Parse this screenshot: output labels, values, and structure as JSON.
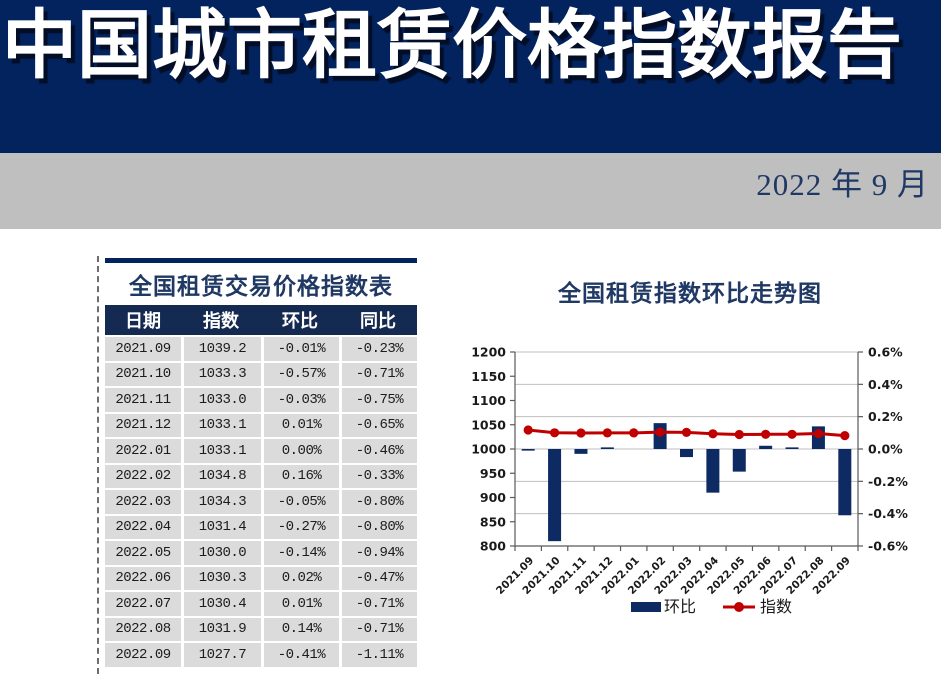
{
  "banner": {
    "title": "中国城市租赁价格指数报告"
  },
  "subheader": {
    "date": "2022 年 9 月"
  },
  "table": {
    "title": "全国租赁交易价格指数表",
    "columns": [
      "日期",
      "指数",
      "环比",
      "同比"
    ],
    "rows": [
      [
        "2021.09",
        "1039.2",
        "-0.01%",
        "-0.23%"
      ],
      [
        "2021.10",
        "1033.3",
        "-0.57%",
        "-0.71%"
      ],
      [
        "2021.11",
        "1033.0",
        "-0.03%",
        "-0.75%"
      ],
      [
        "2021.12",
        "1033.1",
        "0.01%",
        "-0.65%"
      ],
      [
        "2022.01",
        "1033.1",
        "0.00%",
        "-0.46%"
      ],
      [
        "2022.02",
        "1034.8",
        "0.16%",
        "-0.33%"
      ],
      [
        "2022.03",
        "1034.3",
        "-0.05%",
        "-0.80%"
      ],
      [
        "2022.04",
        "1031.4",
        "-0.27%",
        "-0.80%"
      ],
      [
        "2022.05",
        "1030.0",
        "-0.14%",
        "-0.94%"
      ],
      [
        "2022.06",
        "1030.3",
        "0.02%",
        "-0.47%"
      ],
      [
        "2022.07",
        "1030.4",
        "0.01%",
        "-0.71%"
      ],
      [
        "2022.08",
        "1031.9",
        "0.14%",
        "-0.71%"
      ],
      [
        "2022.09",
        "1027.7",
        "-0.41%",
        "-1.11%"
      ]
    ]
  },
  "chart_data": {
    "type": "bar",
    "subtype": "bar-line-combo-dual-axis",
    "title": "全国租赁指数环比走势图",
    "categories": [
      "2021.09",
      "2021.10",
      "2021.11",
      "2021.12",
      "2022.01",
      "2022.02",
      "2022.03",
      "2022.04",
      "2022.05",
      "2022.06",
      "2022.07",
      "2022.08",
      "2022.09"
    ],
    "series": [
      {
        "name": "环比",
        "type": "bar",
        "axis": "right",
        "unit": "%",
        "color": "#0d2a63",
        "values": [
          -0.01,
          -0.57,
          -0.03,
          0.01,
          0.0,
          0.16,
          -0.05,
          -0.27,
          -0.14,
          0.02,
          0.01,
          0.14,
          -0.41
        ]
      },
      {
        "name": "指数",
        "type": "line",
        "axis": "left",
        "color": "#c00000",
        "values": [
          1039.2,
          1033.3,
          1033.0,
          1033.1,
          1033.1,
          1034.8,
          1034.3,
          1031.4,
          1030.0,
          1030.3,
          1030.4,
          1031.9,
          1027.7
        ]
      }
    ],
    "left_axis": {
      "min": 800,
      "max": 1200,
      "step": 50,
      "ticks": [
        "1200",
        "1150",
        "1100",
        "1050",
        "1000",
        "950",
        "900",
        "850",
        "800"
      ]
    },
    "right_axis": {
      "min": -0.6,
      "max": 0.6,
      "step": 0.2,
      "ticks": [
        "0.6%",
        "0.4%",
        "0.2%",
        "0.0%",
        "-0.2%",
        "-0.4%",
        "-0.6%"
      ]
    },
    "legend": [
      "环比",
      "指数"
    ],
    "legend_position": "bottom",
    "grid": true
  },
  "colors": {
    "banner_bg": "#03235e",
    "dateband_bg": "#bfbfbf",
    "accent_navy": "#1f3864",
    "table_header_bg": "#152a50",
    "table_row_bg": "#dbdbdb",
    "bar_color": "#0d2a63",
    "line_color": "#c00000",
    "gridline": "#bfbfbf",
    "axis_line": "#595959"
  }
}
